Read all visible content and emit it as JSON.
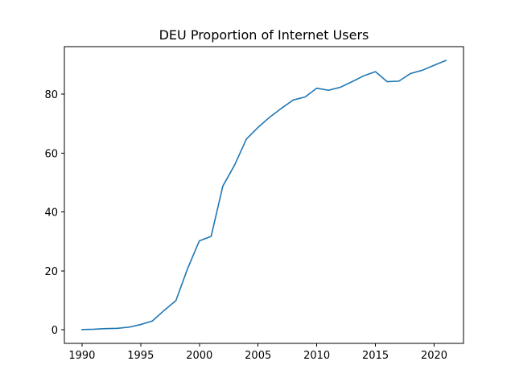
{
  "chart_data": {
    "type": "line",
    "title": "DEU Proportion of Internet Users",
    "xlabel": "",
    "ylabel": "",
    "xlim": [
      1988.5,
      2022.5
    ],
    "ylim": [
      -4.6,
      96.1
    ],
    "x_ticks": [
      1990,
      1995,
      2000,
      2005,
      2010,
      2015,
      2020
    ],
    "y_ticks": [
      0,
      20,
      40,
      60,
      80
    ],
    "grid": false,
    "legend": "none",
    "series": [
      {
        "color": "#1f77b4",
        "x": [
          1990,
          1991,
          1992,
          1993,
          1994,
          1995,
          1996,
          1997,
          1998,
          1999,
          2000,
          2001,
          2002,
          2003,
          2004,
          2005,
          2006,
          2007,
          2008,
          2009,
          2010,
          2011,
          2012,
          2013,
          2014,
          2015,
          2016,
          2017,
          2018,
          2019,
          2020,
          2021
        ],
        "values": [
          0.1,
          0.2,
          0.4,
          0.5,
          0.9,
          1.8,
          3.0,
          6.6,
          9.9,
          20.8,
          30.2,
          31.7,
          48.8,
          55.9,
          64.7,
          68.7,
          72.2,
          75.2,
          78.0,
          79.0,
          82.0,
          81.3,
          82.3,
          84.2,
          86.2,
          87.6,
          84.2,
          84.4,
          87.0,
          88.1,
          89.8,
          91.4
        ]
      }
    ]
  }
}
